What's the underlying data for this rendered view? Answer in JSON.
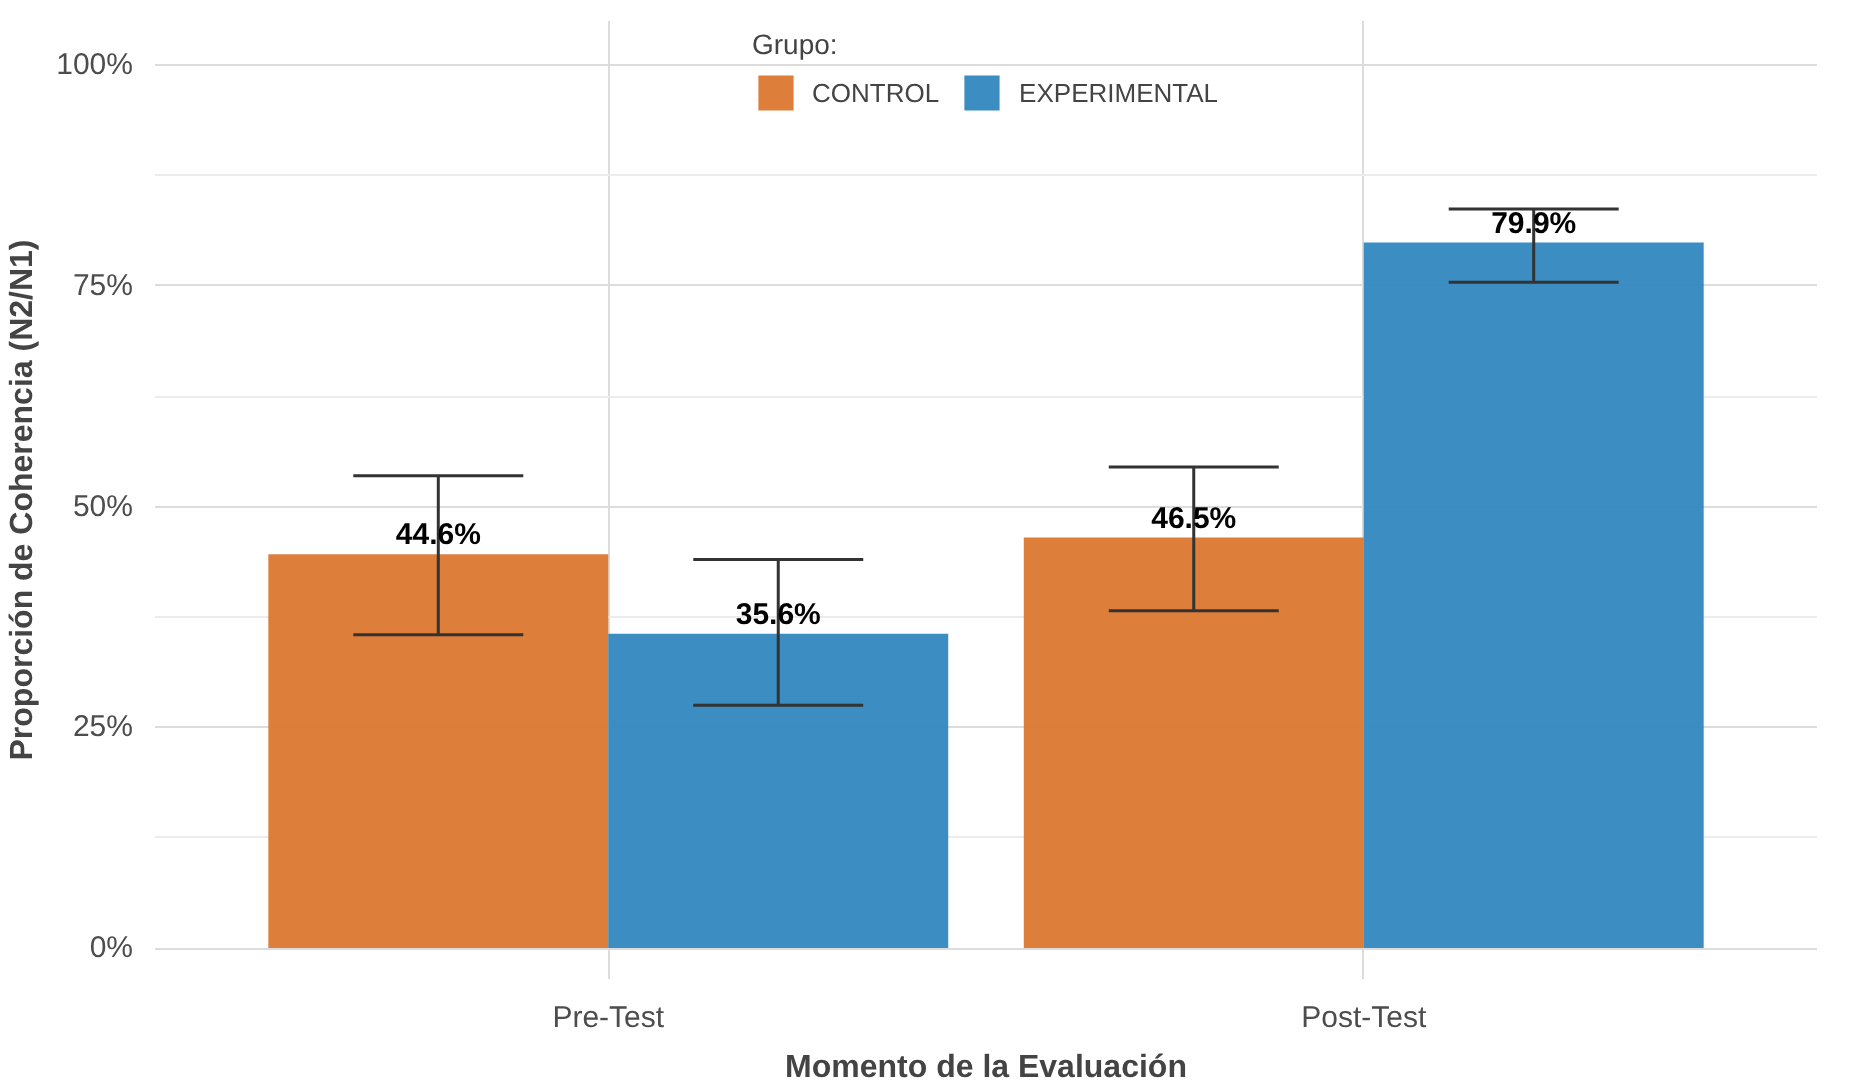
{
  "chart_data": {
    "type": "bar",
    "xlabel": "Momento de la Evaluación",
    "ylabel": "Proporción de Coherencia (N2/N1)",
    "legend_title": "Grupo:",
    "categories": [
      "Pre-Test",
      "Post-Test"
    ],
    "series": [
      {
        "name": "CONTROL",
        "color": "#dc7a35",
        "values": [
          44.6,
          46.5
        ],
        "value_labels": [
          "44.6%",
          "46.5%"
        ],
        "errors": [
          [
            35.5,
            53.5
          ],
          [
            38.2,
            54.5
          ]
        ]
      },
      {
        "name": "EXPERIMENTAL",
        "color": "#3589c0",
        "values": [
          35.6,
          79.9
        ],
        "value_labels": [
          "35.6%",
          "79.9%"
        ],
        "errors": [
          [
            27.5,
            44.0
          ],
          [
            75.4,
            83.7
          ]
        ]
      }
    ],
    "ylim": [
      -3.5,
      105
    ],
    "yticks": [
      {
        "value": 0,
        "label": "0%"
      },
      {
        "value": 12.5,
        "label": null
      },
      {
        "value": 25,
        "label": "25%"
      },
      {
        "value": 37.5,
        "label": null
      },
      {
        "value": 50,
        "label": "50%"
      },
      {
        "value": 62.5,
        "label": null
      },
      {
        "value": 75,
        "label": "75%"
      },
      {
        "value": 87.5,
        "label": null
      },
      {
        "value": 100,
        "label": "100%"
      }
    ],
    "grid": true,
    "legend": "top"
  }
}
